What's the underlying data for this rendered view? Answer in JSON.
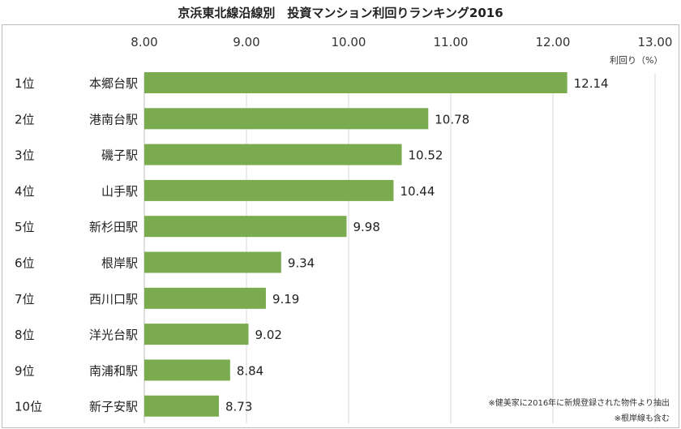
{
  "chart_data": {
    "type": "bar",
    "orientation": "horizontal",
    "title": "京浜東北線沿線別　投資マンション利回りランキング2016",
    "xlabel": "利回り（%）",
    "xlim": [
      8.0,
      13.0
    ],
    "xticks": [
      "8.00",
      "9.00",
      "10.00",
      "11.00",
      "12.00",
      "13.00"
    ],
    "axis_position": "top",
    "grid": true,
    "bar_color": "#7aab4e",
    "ranks": [
      "1位",
      "2位",
      "3位",
      "4位",
      "5位",
      "6位",
      "7位",
      "8位",
      "9位",
      "10位"
    ],
    "categories": [
      "本郷台駅",
      "港南台駅",
      "磯子駅",
      "山手駅",
      "新杉田駅",
      "根岸駅",
      "西川口駅",
      "洋光台駅",
      "南浦和駅",
      "新子安駅"
    ],
    "values": [
      12.14,
      10.78,
      10.52,
      10.44,
      9.98,
      9.34,
      9.19,
      9.02,
      8.84,
      8.73
    ],
    "value_labels": [
      "12.14",
      "10.78",
      "10.52",
      "10.44",
      "9.98",
      "9.34",
      "9.19",
      "9.02",
      "8.84",
      "8.73"
    ],
    "notes": [
      "※健美家に2016年に新規登録された物件より抽出",
      "※根岸線も含む"
    ]
  }
}
